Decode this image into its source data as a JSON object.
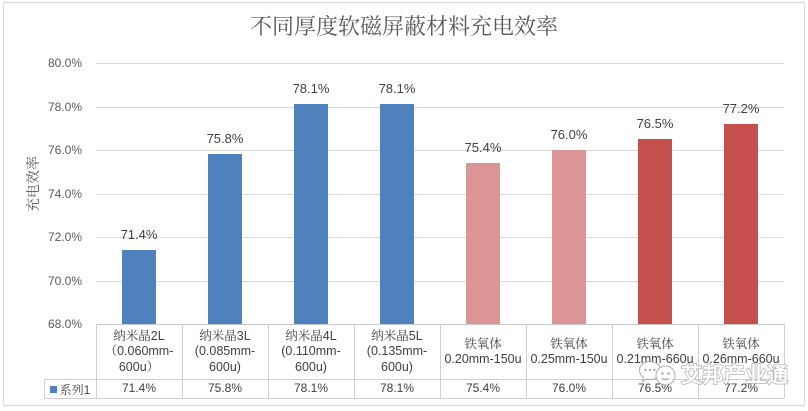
{
  "chart_data": {
    "type": "bar",
    "title": "不同厚度软磁屏蔽材料充电效率",
    "ylabel": "充电效率",
    "xlabel": "",
    "ylim": [
      68,
      80
    ],
    "ytick_step": 2,
    "ytick_labels": [
      "80.0%",
      "78.0%",
      "76.0%",
      "74.0%",
      "72.0%",
      "70.0%",
      "68.0%"
    ],
    "grid": "horizontal",
    "legend_position": "bottom-table",
    "categories": [
      {
        "label": "纳米晶2L（0.060mm-600u）",
        "label_lines": [
          "纳米晶2L",
          "（0.060mm-",
          "600u）"
        ]
      },
      {
        "label": "纳米晶3L (0.085mm-600u)",
        "label_lines": [
          "纳米晶3L",
          "(0.085mm-",
          "600u)"
        ]
      },
      {
        "label": "纳米晶4L (0.110mm-600u)",
        "label_lines": [
          "纳米晶4L",
          "(0.110mm-",
          "600u)"
        ]
      },
      {
        "label": "纳米晶5L (0.135mm-600u)",
        "label_lines": [
          "纳米晶5L",
          "(0.135mm-",
          "600u)"
        ]
      },
      {
        "label": "铁氧体 0.20mm-150u",
        "label_lines": [
          "铁氧体",
          "0.20mm-150u"
        ]
      },
      {
        "label": "铁氧体 0.25mm-150u",
        "label_lines": [
          "铁氧体",
          "0.25mm-150u"
        ]
      },
      {
        "label": "铁氧体 0.21mm-660u",
        "label_lines": [
          "铁氧体",
          "0.21mm-660u"
        ]
      },
      {
        "label": "铁氧体 0.26mm-660u",
        "label_lines": [
          "铁氧体",
          "0.26mm-660u"
        ]
      }
    ],
    "series": [
      {
        "name": "系列1",
        "values": [
          71.4,
          75.8,
          78.1,
          78.1,
          75.4,
          76.0,
          76.5,
          77.2
        ],
        "value_labels": [
          "71.4%",
          "75.8%",
          "78.1%",
          "78.1%",
          "75.4%",
          "76.0%",
          "76.5%",
          "77.2%"
        ],
        "bar_colors": [
          "#4f81bd",
          "#4f81bd",
          "#4f81bd",
          "#4f81bd",
          "#dc9595",
          "#dc9595",
          "#c5504e",
          "#c5504e"
        ]
      }
    ],
    "colors": {
      "nanocrystal_blue": "#4f81bd",
      "ferrite_light_red": "#dc9595",
      "ferrite_dark_red": "#c5504e",
      "gridline_gray": "#d9d9d9",
      "axis_text_gray": "#595959",
      "label_text_gray": "#404040",
      "table_border_gray": "#d0cece"
    }
  },
  "watermark": {
    "text": "艾邦产业通",
    "logo": "chat-bubbles-logo"
  }
}
